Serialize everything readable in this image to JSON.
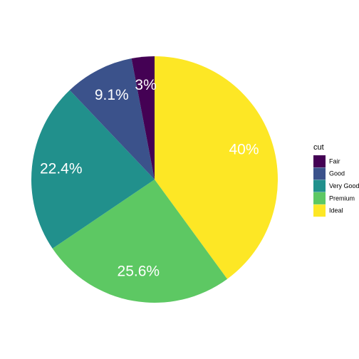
{
  "chart_data": {
    "type": "pie",
    "legend_title": "cut",
    "categories": [
      "Fair",
      "Good",
      "Very Good",
      "Premium",
      "Ideal"
    ],
    "values": [
      3,
      9.1,
      22.4,
      25.6,
      40
    ],
    "value_labels": [
      "3%",
      "9.1%",
      "22.4%",
      "25.6%",
      "40%"
    ],
    "colors": [
      "#440154",
      "#3b528b",
      "#21908c",
      "#5dc863",
      "#fde725"
    ],
    "legend": "right"
  }
}
